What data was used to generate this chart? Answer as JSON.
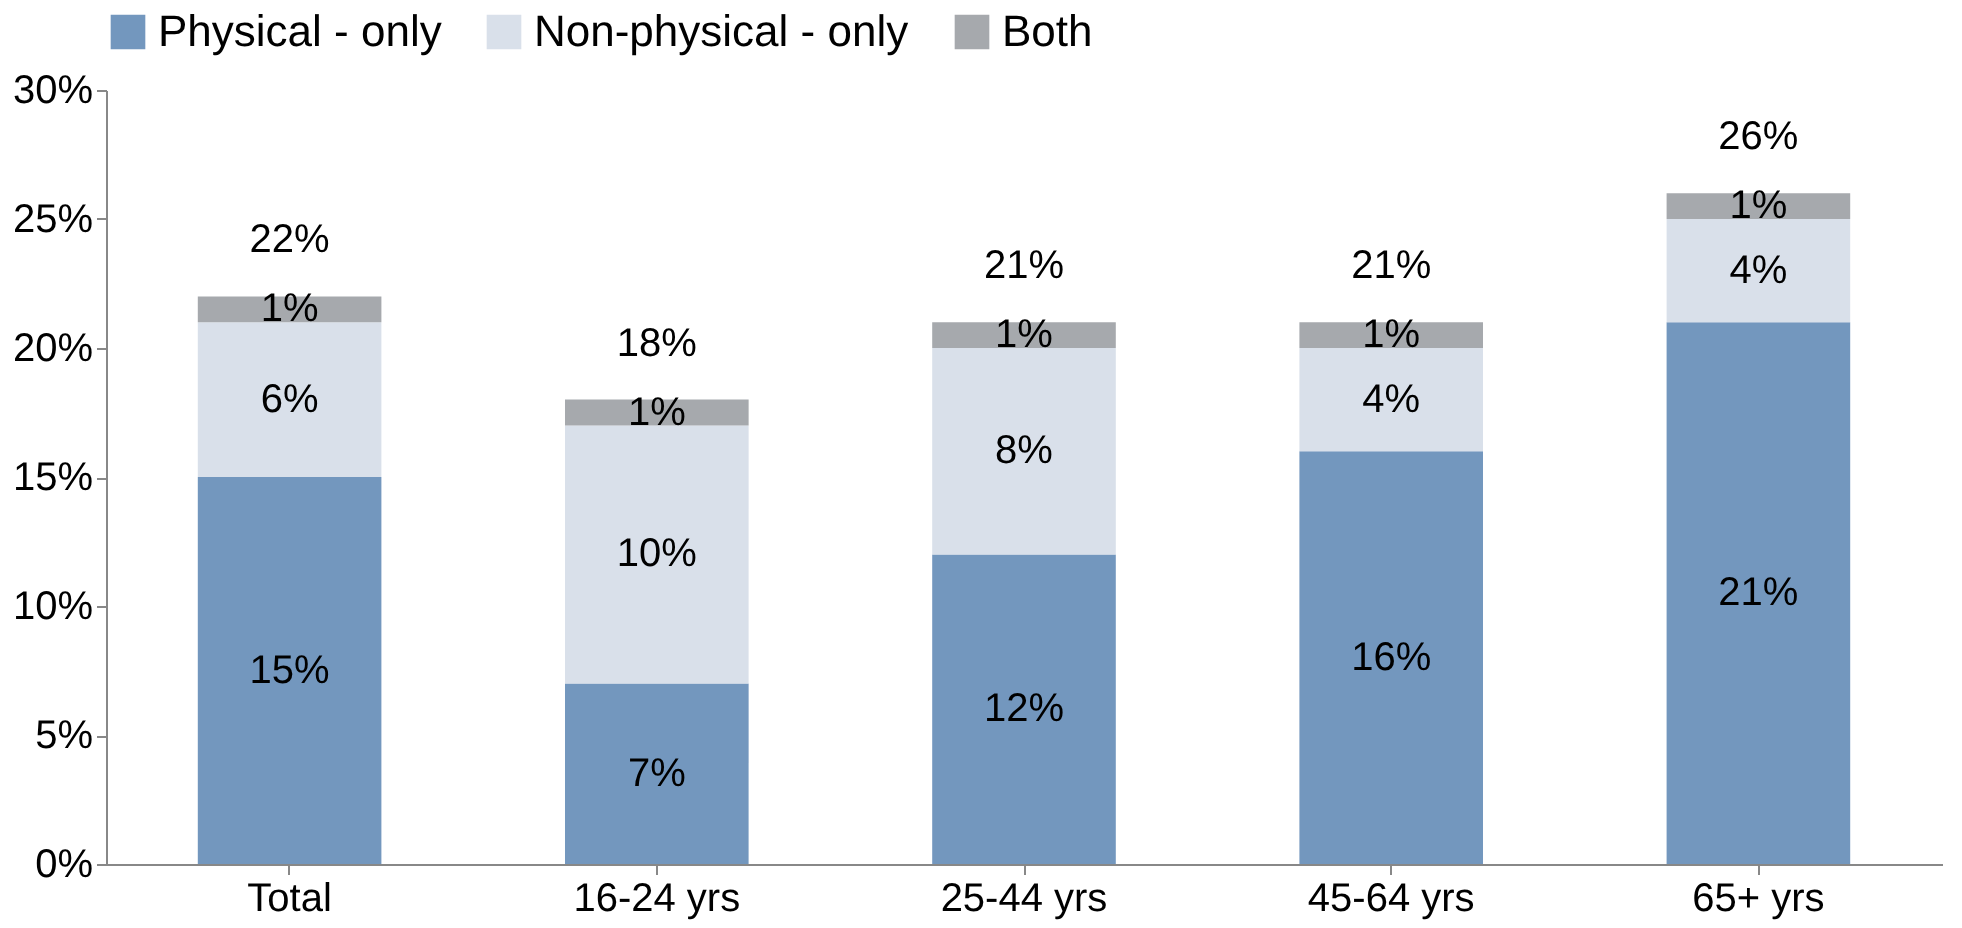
{
  "chart_data": {
    "type": "bar",
    "stacked": true,
    "categories": [
      "Total",
      "16-24 yrs",
      "25-44 yrs",
      "45-64 yrs",
      "65+ yrs"
    ],
    "series": [
      {
        "name": "Physical - only",
        "color": "#7397be",
        "values": [
          15,
          7,
          12,
          16,
          21
        ],
        "value_labels": [
          "15%",
          "7%",
          "12%",
          "16%",
          "21%"
        ]
      },
      {
        "name": "Non-physical - only",
        "color": "#d9e0ea",
        "values": [
          6,
          10,
          8,
          4,
          4
        ],
        "value_labels": [
          "6%",
          "10%",
          "8%",
          "4%",
          "4%"
        ]
      },
      {
        "name": "Both",
        "color": "#a6a9ad",
        "values": [
          1,
          1,
          1,
          1,
          1
        ],
        "value_labels": [
          "1%",
          "1%",
          "1%",
          "1%",
          "1%"
        ]
      }
    ],
    "totals": [
      "22%",
      "18%",
      "21%",
      "21%",
      "26%"
    ],
    "ylim": [
      0,
      30
    ],
    "yticks": [
      {
        "value": 0,
        "label": "0%"
      },
      {
        "value": 5,
        "label": "5%"
      },
      {
        "value": 10,
        "label": "10%"
      },
      {
        "value": 15,
        "label": "15%"
      },
      {
        "value": 20,
        "label": "20%"
      },
      {
        "value": 25,
        "label": "25%"
      },
      {
        "value": 30,
        "label": "30%"
      }
    ],
    "grid": false,
    "legend": "top"
  }
}
